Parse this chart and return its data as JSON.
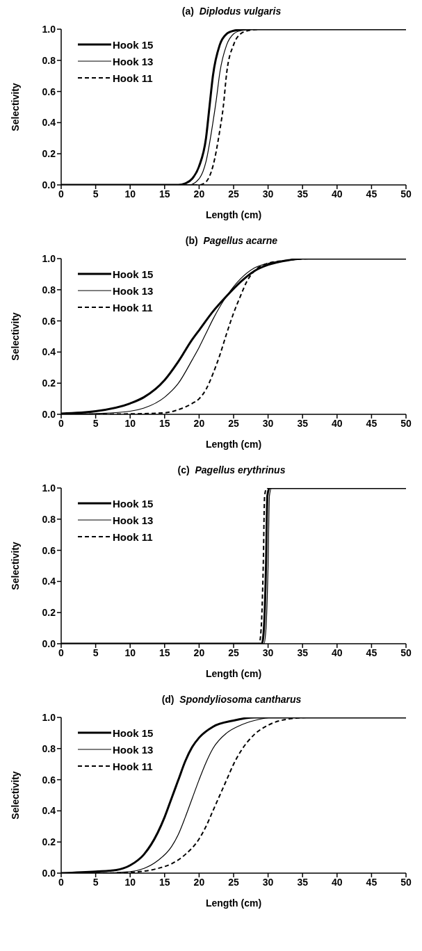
{
  "chart_data": [
    {
      "type": "line",
      "title": "(a)  Diplodus vulgaris",
      "xlabel": "Length (cm)",
      "ylabel": "Selectivity",
      "xlim": [
        0,
        50
      ],
      "xticks": [
        0,
        5,
        10,
        15,
        20,
        25,
        30,
        35,
        40,
        45,
        50
      ],
      "ylim": [
        0,
        1
      ],
      "yticks": [
        {
          "value": 0,
          "label": "0.0"
        },
        {
          "value": 0.2,
          "label": "0.2"
        },
        {
          "value": 0.4,
          "label": "0.4"
        },
        {
          "value": 0.6,
          "label": "0.6"
        },
        {
          "value": 0.8,
          "label": "0.8"
        },
        {
          "value": 1,
          "label": "1.0"
        }
      ],
      "grid": false,
      "legend": "top left",
      "marker": "none",
      "series": [
        {
          "name": "Hook 15",
          "color": "#000000",
          "line_style": "solid",
          "x": [
            0,
            17,
            18,
            19,
            20,
            21,
            21.5,
            22,
            23,
            24,
            25,
            27,
            50
          ],
          "values": [
            0,
            0,
            0.01,
            0.04,
            0.12,
            0.3,
            0.5,
            0.7,
            0.9,
            0.97,
            0.99,
            1,
            1
          ]
        },
        {
          "name": "Hook 13",
          "color": "#000000",
          "line_style": "solid",
          "x": [
            0,
            18.5,
            20,
            21,
            22,
            22.5,
            23,
            24,
            25,
            26,
            28,
            50
          ],
          "values": [
            0,
            0,
            0.04,
            0.15,
            0.4,
            0.55,
            0.72,
            0.9,
            0.97,
            0.99,
            1,
            1
          ]
        },
        {
          "name": "Hook 11",
          "color": "#000000",
          "line_style": "dashed",
          "x": [
            0,
            20,
            21,
            22,
            23,
            23.5,
            24,
            25,
            26,
            27,
            29,
            50
          ],
          "values": [
            0,
            0,
            0.02,
            0.12,
            0.35,
            0.5,
            0.72,
            0.9,
            0.97,
            0.99,
            1,
            1
          ]
        }
      ]
    },
    {
      "type": "line",
      "title": "(b)  Pagellus acarne",
      "xlabel": "Length (cm)",
      "ylabel": "Selectivity",
      "xlim": [
        0,
        50
      ],
      "xticks": [
        0,
        5,
        10,
        15,
        20,
        25,
        30,
        35,
        40,
        45,
        50
      ],
      "ylim": [
        0,
        1
      ],
      "yticks": [
        {
          "value": 0,
          "label": "0.0"
        },
        {
          "value": 0.2,
          "label": "0.2"
        },
        {
          "value": 0.4,
          "label": "0.4"
        },
        {
          "value": 0.6,
          "label": "0.6"
        },
        {
          "value": 0.8,
          "label": "0.8"
        },
        {
          "value": 1,
          "label": "1.0"
        }
      ],
      "grid": false,
      "legend": "top left",
      "marker": "none",
      "series": [
        {
          "name": "Hook 15",
          "color": "#000000",
          "line_style": "solid",
          "x": [
            0,
            5,
            10,
            12,
            15,
            17,
            19,
            20,
            22,
            24,
            26,
            28,
            30,
            33,
            35,
            50
          ],
          "values": [
            0.005,
            0.02,
            0.07,
            0.11,
            0.22,
            0.34,
            0.48,
            0.54,
            0.66,
            0.76,
            0.85,
            0.92,
            0.96,
            0.99,
            1,
            1
          ]
        },
        {
          "name": "Hook 13",
          "color": "#000000",
          "line_style": "solid",
          "x": [
            0,
            5,
            10,
            12,
            15,
            17,
            19,
            20,
            21,
            22,
            24,
            26,
            28,
            30,
            33,
            36,
            50
          ],
          "values": [
            0,
            0.005,
            0.02,
            0.04,
            0.11,
            0.2,
            0.35,
            0.43,
            0.52,
            0.61,
            0.76,
            0.87,
            0.94,
            0.97,
            0.99,
            1,
            1
          ]
        },
        {
          "name": "Hook 11",
          "color": "#000000",
          "line_style": "dashed",
          "x": [
            0,
            10,
            15,
            17,
            19,
            20,
            21,
            22,
            23,
            24,
            25,
            26,
            27,
            28,
            30,
            33,
            36,
            50
          ],
          "values": [
            0,
            0.003,
            0.01,
            0.03,
            0.07,
            0.1,
            0.16,
            0.26,
            0.38,
            0.52,
            0.65,
            0.76,
            0.86,
            0.92,
            0.97,
            0.99,
            1,
            1
          ]
        }
      ]
    },
    {
      "type": "line",
      "title": "(c)  Pagellus erythrinus",
      "xlabel": "Length (cm)",
      "ylabel": "Selectivity",
      "xlim": [
        0,
        50
      ],
      "xticks": [
        0,
        5,
        10,
        15,
        20,
        25,
        30,
        35,
        40,
        45,
        50
      ],
      "ylim": [
        0,
        1
      ],
      "yticks": [
        {
          "value": 0,
          "label": "0.0"
        },
        {
          "value": 0.2,
          "label": "0.2"
        },
        {
          "value": 0.4,
          "label": "0.4"
        },
        {
          "value": 0.6,
          "label": "0.6"
        },
        {
          "value": 0.8,
          "label": "0.8"
        },
        {
          "value": 1,
          "label": "1.0"
        }
      ],
      "grid": false,
      "legend": "top left",
      "marker": "none",
      "series": [
        {
          "name": "Hook 15",
          "color": "#000000",
          "line_style": "solid",
          "x": [
            0,
            29.1,
            29.4,
            29.7,
            29.9,
            30.2,
            50
          ],
          "values": [
            0,
            0,
            0.1,
            0.5,
            0.95,
            1,
            1
          ]
        },
        {
          "name": "Hook 13",
          "color": "#000000",
          "line_style": "solid",
          "x": [
            0,
            29.4,
            29.7,
            30,
            30.2,
            30.5,
            50
          ],
          "values": [
            0,
            0,
            0.1,
            0.5,
            0.95,
            1,
            1
          ]
        },
        {
          "name": "Hook 11",
          "color": "#000000",
          "line_style": "dashed",
          "x": [
            0,
            28.7,
            29,
            29.3,
            29.5,
            29.8,
            50
          ],
          "values": [
            0,
            0,
            0.1,
            0.5,
            0.95,
            1,
            1
          ]
        }
      ]
    },
    {
      "type": "line",
      "title": "(d)  Spondyliosoma cantharus",
      "xlabel": "Length (cm)",
      "ylabel": "Selectivity",
      "xlim": [
        0,
        50
      ],
      "xticks": [
        0,
        5,
        10,
        15,
        20,
        25,
        30,
        35,
        40,
        45,
        50
      ],
      "ylim": [
        0,
        1
      ],
      "yticks": [
        {
          "value": 0,
          "label": "0.0"
        },
        {
          "value": 0.2,
          "label": "0.2"
        },
        {
          "value": 0.4,
          "label": "0.4"
        },
        {
          "value": 0.6,
          "label": "0.6"
        },
        {
          "value": 0.8,
          "label": "0.8"
        },
        {
          "value": 1,
          "label": "1.0"
        }
      ],
      "grid": false,
      "legend": "top left",
      "marker": "none",
      "series": [
        {
          "name": "Hook 15",
          "color": "#000000",
          "line_style": "solid",
          "x": [
            0,
            5,
            8,
            10,
            12,
            14,
            15,
            16,
            17,
            18,
            19,
            20,
            22,
            25,
            28,
            50
          ],
          "values": [
            0,
            0.01,
            0.02,
            0.05,
            0.12,
            0.26,
            0.36,
            0.48,
            0.6,
            0.72,
            0.81,
            0.87,
            0.94,
            0.98,
            1,
            1
          ]
        },
        {
          "name": "Hook 13",
          "color": "#000000",
          "line_style": "solid",
          "x": [
            0,
            5,
            10,
            12,
            14,
            16,
            17,
            18,
            19,
            20,
            21,
            22,
            24,
            26,
            28,
            31,
            50
          ],
          "values": [
            0,
            0,
            0.01,
            0.03,
            0.08,
            0.17,
            0.25,
            0.36,
            0.48,
            0.6,
            0.71,
            0.8,
            0.9,
            0.95,
            0.98,
            1,
            1
          ]
        },
        {
          "name": "Hook 11",
          "color": "#000000",
          "line_style": "dashed",
          "x": [
            0,
            5,
            10,
            14,
            16,
            18,
            20,
            21,
            22,
            23,
            24,
            25,
            26,
            28,
            30,
            33,
            36,
            50
          ],
          "values": [
            0,
            0,
            0.005,
            0.03,
            0.06,
            0.12,
            0.22,
            0.3,
            0.4,
            0.5,
            0.6,
            0.7,
            0.78,
            0.89,
            0.95,
            0.99,
            1,
            1
          ]
        }
      ]
    }
  ]
}
